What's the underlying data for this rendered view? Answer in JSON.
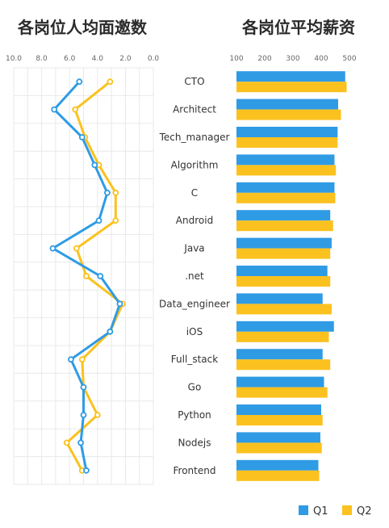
{
  "titles": {
    "left": "各岗位人均面邀数",
    "right": "各岗位平均薪资"
  },
  "colors": {
    "q1": "#2f9be5",
    "q2": "#fbc11e",
    "grid": "#e9e9e9"
  },
  "chart_data": [
    {
      "type": "line",
      "title": "各岗位人均面邀数",
      "orientation": "vertical-category",
      "x_reversed": true,
      "xlim": [
        0,
        10
      ],
      "x_ticks": [
        "10.0",
        "8.0",
        "6.0",
        "4.0",
        "2.0",
        "0.0"
      ],
      "grid": true,
      "categories": [
        "CTO",
        "Architect",
        "Tech_manager",
        "Algorithm",
        "C",
        "Android",
        "Java",
        ".net",
        "Data_engineer",
        "iOS",
        "Full_stack",
        "Go",
        "Python",
        "Nodejs",
        "Frontend"
      ],
      "series": [
        {
          "name": "Q1",
          "values": [
            5.3,
            7.1,
            5.1,
            4.2,
            3.3,
            3.9,
            7.2,
            3.8,
            2.4,
            3.1,
            5.9,
            5.0,
            5.0,
            5.2,
            4.8
          ]
        },
        {
          "name": "Q2",
          "values": [
            3.1,
            5.6,
            4.9,
            3.9,
            2.7,
            2.7,
            5.5,
            4.8,
            2.2,
            3.1,
            5.1,
            5.0,
            4.0,
            6.2,
            5.1
          ]
        }
      ]
    },
    {
      "type": "bar",
      "title": "各岗位平均薪资",
      "orientation": "horizontal",
      "xlim": [
        100,
        520
      ],
      "x_ticks": [
        "100",
        "200",
        "300",
        "400",
        "500"
      ],
      "categories": [
        "CTO",
        "Architect",
        "Tech_manager",
        "Algorithm",
        "C",
        "Android",
        "Java",
        ".net",
        "Data_engineer",
        "iOS",
        "Full_stack",
        "Go",
        "Python",
        "Nodejs",
        "Frontend"
      ],
      "series": [
        {
          "name": "Q1",
          "values": [
            485,
            460,
            458,
            447,
            447,
            432,
            437,
            422,
            405,
            445,
            405,
            410,
            400,
            397,
            390
          ]
        },
        {
          "name": "Q2",
          "values": [
            490,
            470,
            458,
            452,
            450,
            442,
            432,
            432,
            437,
            427,
            432,
            422,
            405,
            402,
            393
          ]
        }
      ],
      "legend": {
        "position": "bottom-right",
        "entries": [
          "Q1",
          "Q2"
        ]
      }
    }
  ]
}
